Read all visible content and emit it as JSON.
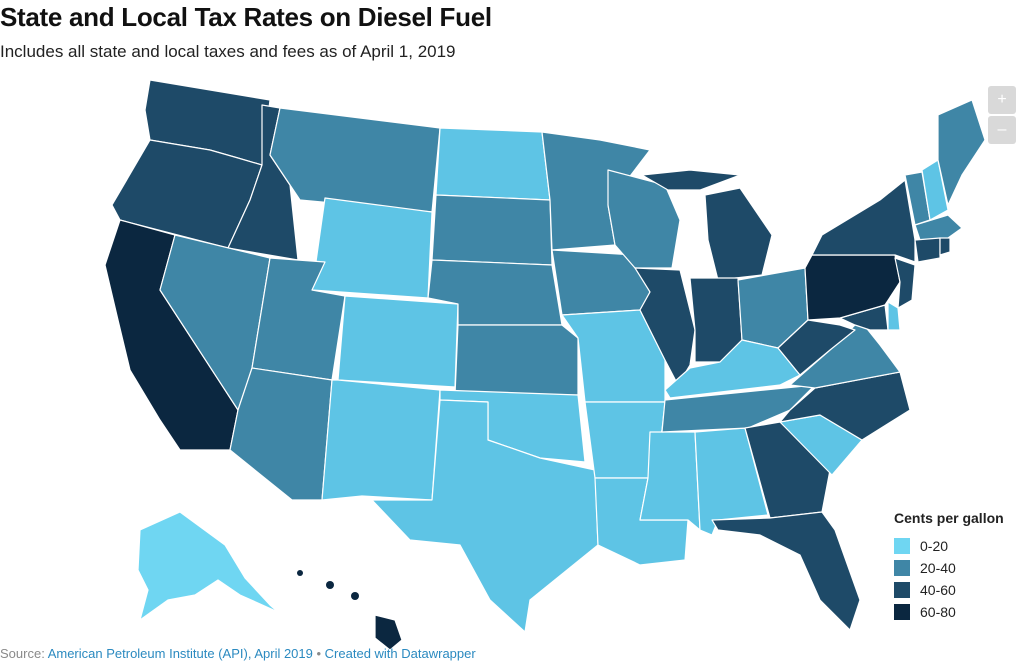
{
  "title": "State and Local Tax Rates on Diesel Fuel",
  "subtitle": "Includes all state and local taxes and fees as of April 1, 2019",
  "zoom": {
    "in_label": "+",
    "out_label": "–"
  },
  "legend": {
    "title": "Cents per gallon",
    "items": [
      {
        "label": "0-20",
        "color": "#6fd6f2"
      },
      {
        "label": "20-40",
        "color": "#3f86a6"
      },
      {
        "label": "40-60",
        "color": "#1e4a68"
      },
      {
        "label": "60-80",
        "color": "#0b2740"
      }
    ]
  },
  "colors": {
    "band_0_20_light": "#6fd6f2",
    "band_0_20": "#5ec4e5",
    "band_20_40": "#3f86a6",
    "band_40_60": "#1e4a68",
    "band_60_80": "#0b2740"
  },
  "footer": {
    "source_prefix": "Source: ",
    "source_link": "American Petroleum Institute (API), April 2019",
    "separator": " • ",
    "credit_link": "Created with Datawrapper"
  }
}
